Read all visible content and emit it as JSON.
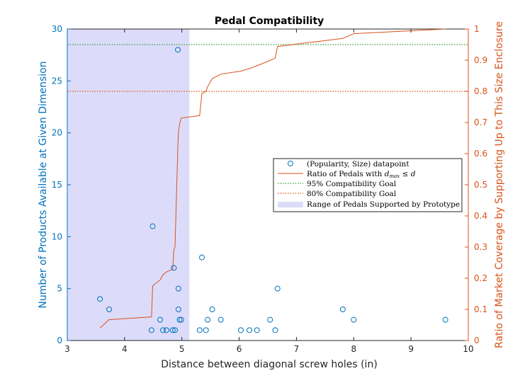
{
  "chart_data": {
    "type": "scatter",
    "title": "Pedal Compatibility",
    "xlabel": "Distance between diagonal screw holes (in)",
    "ylabel_left": "Number of Products Available at Given Dimension",
    "ylabel_right": "Ratio of Market Coverage by Supporting Up to This Size Enclosure",
    "xlim": [
      3,
      10
    ],
    "ylim_left": [
      0,
      30
    ],
    "ylim_right": [
      0,
      1
    ],
    "x_ticks": [
      "3",
      "4",
      "5",
      "6",
      "7",
      "8",
      "9",
      "10"
    ],
    "y_left_ticks": [
      "0",
      "5",
      "10",
      "15",
      "20",
      "25",
      "30"
    ],
    "y_right_ticks": [
      "0",
      "0.1",
      "0.2",
      "0.3",
      "0.4",
      "0.5",
      "0.6",
      "0.7",
      "0.8",
      "0.9",
      "1"
    ],
    "colors": {
      "left_axis": "#0072bd",
      "right_axis": "#d95319",
      "scatter": "#0072bd",
      "ratio_line": "#d95319",
      "goal95": "#2ca02c",
      "goal80": "#d95319",
      "range_fill": "#dcdcfa"
    },
    "range_supported": [
      3,
      5.13
    ],
    "goal_95": 0.95,
    "goal_80": 0.8,
    "scatter_points": [
      {
        "x": 3.57,
        "y": 4
      },
      {
        "x": 3.73,
        "y": 3
      },
      {
        "x": 4.47,
        "y": 1
      },
      {
        "x": 4.49,
        "y": 11
      },
      {
        "x": 4.62,
        "y": 2
      },
      {
        "x": 4.67,
        "y": 1
      },
      {
        "x": 4.73,
        "y": 1
      },
      {
        "x": 4.84,
        "y": 1
      },
      {
        "x": 4.86,
        "y": 7
      },
      {
        "x": 4.88,
        "y": 1
      },
      {
        "x": 4.93,
        "y": 28
      },
      {
        "x": 4.94,
        "y": 5
      },
      {
        "x": 4.94,
        "y": 3
      },
      {
        "x": 4.96,
        "y": 2
      },
      {
        "x": 4.99,
        "y": 2
      },
      {
        "x": 5.31,
        "y": 1
      },
      {
        "x": 5.35,
        "y": 8
      },
      {
        "x": 5.42,
        "y": 1
      },
      {
        "x": 5.45,
        "y": 2
      },
      {
        "x": 5.53,
        "y": 3
      },
      {
        "x": 5.68,
        "y": 2
      },
      {
        "x": 6.03,
        "y": 1
      },
      {
        "x": 6.18,
        "y": 1
      },
      {
        "x": 6.31,
        "y": 1
      },
      {
        "x": 6.54,
        "y": 2
      },
      {
        "x": 6.63,
        "y": 1
      },
      {
        "x": 6.67,
        "y": 5
      },
      {
        "x": 7.81,
        "y": 3
      },
      {
        "x": 8.0,
        "y": 2
      },
      {
        "x": 9.6,
        "y": 2
      }
    ],
    "ratio_line": {
      "x": [
        3.57,
        3.73,
        4.47,
        4.49,
        4.62,
        4.67,
        4.73,
        4.84,
        4.86,
        4.88,
        4.93,
        4.94,
        4.96,
        4.99,
        5.31,
        5.35,
        5.42,
        5.45,
        5.53,
        5.68,
        6.03,
        6.18,
        6.31,
        6.54,
        6.63,
        6.67,
        7.81,
        8.0,
        9.6
      ],
      "y": [
        0.04,
        0.067,
        0.076,
        0.176,
        0.194,
        0.211,
        0.22,
        0.229,
        0.291,
        0.3,
        0.626,
        0.67,
        0.696,
        0.714,
        0.722,
        0.793,
        0.8,
        0.815,
        0.841,
        0.855,
        0.865,
        0.873,
        0.882,
        0.899,
        0.907,
        0.944,
        0.97,
        0.985,
        1.0
      ]
    },
    "legend": {
      "placement": "right-center",
      "entries": [
        "(Popularity, Size) datapoint",
        "Ratio of Pedals with ",
        "95% Compatibility Goal",
        "80% Compatibility Goal",
        "Range of Pedals Supported by Prototype"
      ],
      "math_d_max": "d",
      "math_d_max_sub": "max",
      "math_leq_d": " ≤ d"
    }
  }
}
